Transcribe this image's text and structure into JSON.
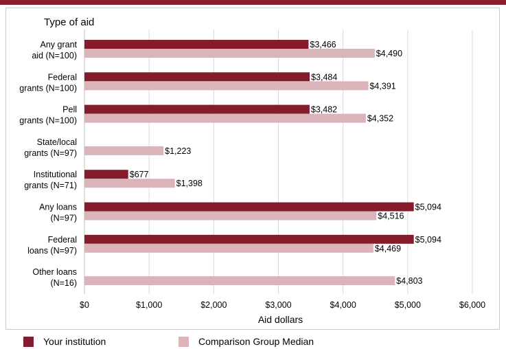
{
  "chart_data": {
    "type": "bar",
    "orientation": "horizontal",
    "title": "Type of aid",
    "xlabel": "Aid dollars",
    "xlim": [
      0,
      6000
    ],
    "xticks": [
      "$0",
      "$1,000",
      "$2,000",
      "$3,000",
      "$4,000",
      "$5,000",
      "$6,000"
    ],
    "grid": true,
    "legend_position": "bottom",
    "categories": [
      {
        "line1": "Any grant",
        "line2": "aid (N=100)"
      },
      {
        "line1": "Federal",
        "line2": "grants (N=100)"
      },
      {
        "line1": "Pell",
        "line2": "grants (N=100)"
      },
      {
        "line1": "State/local",
        "line2": "grants (N=97)"
      },
      {
        "line1": "Institutional",
        "line2": "grants (N=71)"
      },
      {
        "line1": "Any loans",
        "line2": "(N=97)"
      },
      {
        "line1": "Federal",
        "line2": "loans (N=97)"
      },
      {
        "line1": "Other loans",
        "line2": "(N=16)"
      }
    ],
    "series": [
      {
        "name": "Your institution",
        "color": "#851c2c",
        "values": [
          3466,
          3484,
          3482,
          null,
          677,
          5094,
          5094,
          null
        ],
        "labels": [
          "$3,466",
          "$3,484",
          "$3,482",
          "",
          "$677",
          "$5,094",
          "$5,094",
          ""
        ]
      },
      {
        "name": "Comparison Group Median",
        "color": "#dbb4ba",
        "values": [
          4490,
          4391,
          4352,
          1223,
          1398,
          4516,
          4469,
          4803
        ],
        "labels": [
          "$4,490",
          "$4,391",
          "$4,352",
          "$1,223",
          "$1,398",
          "$4,516",
          "$4,469",
          "$4,803"
        ]
      }
    ]
  }
}
